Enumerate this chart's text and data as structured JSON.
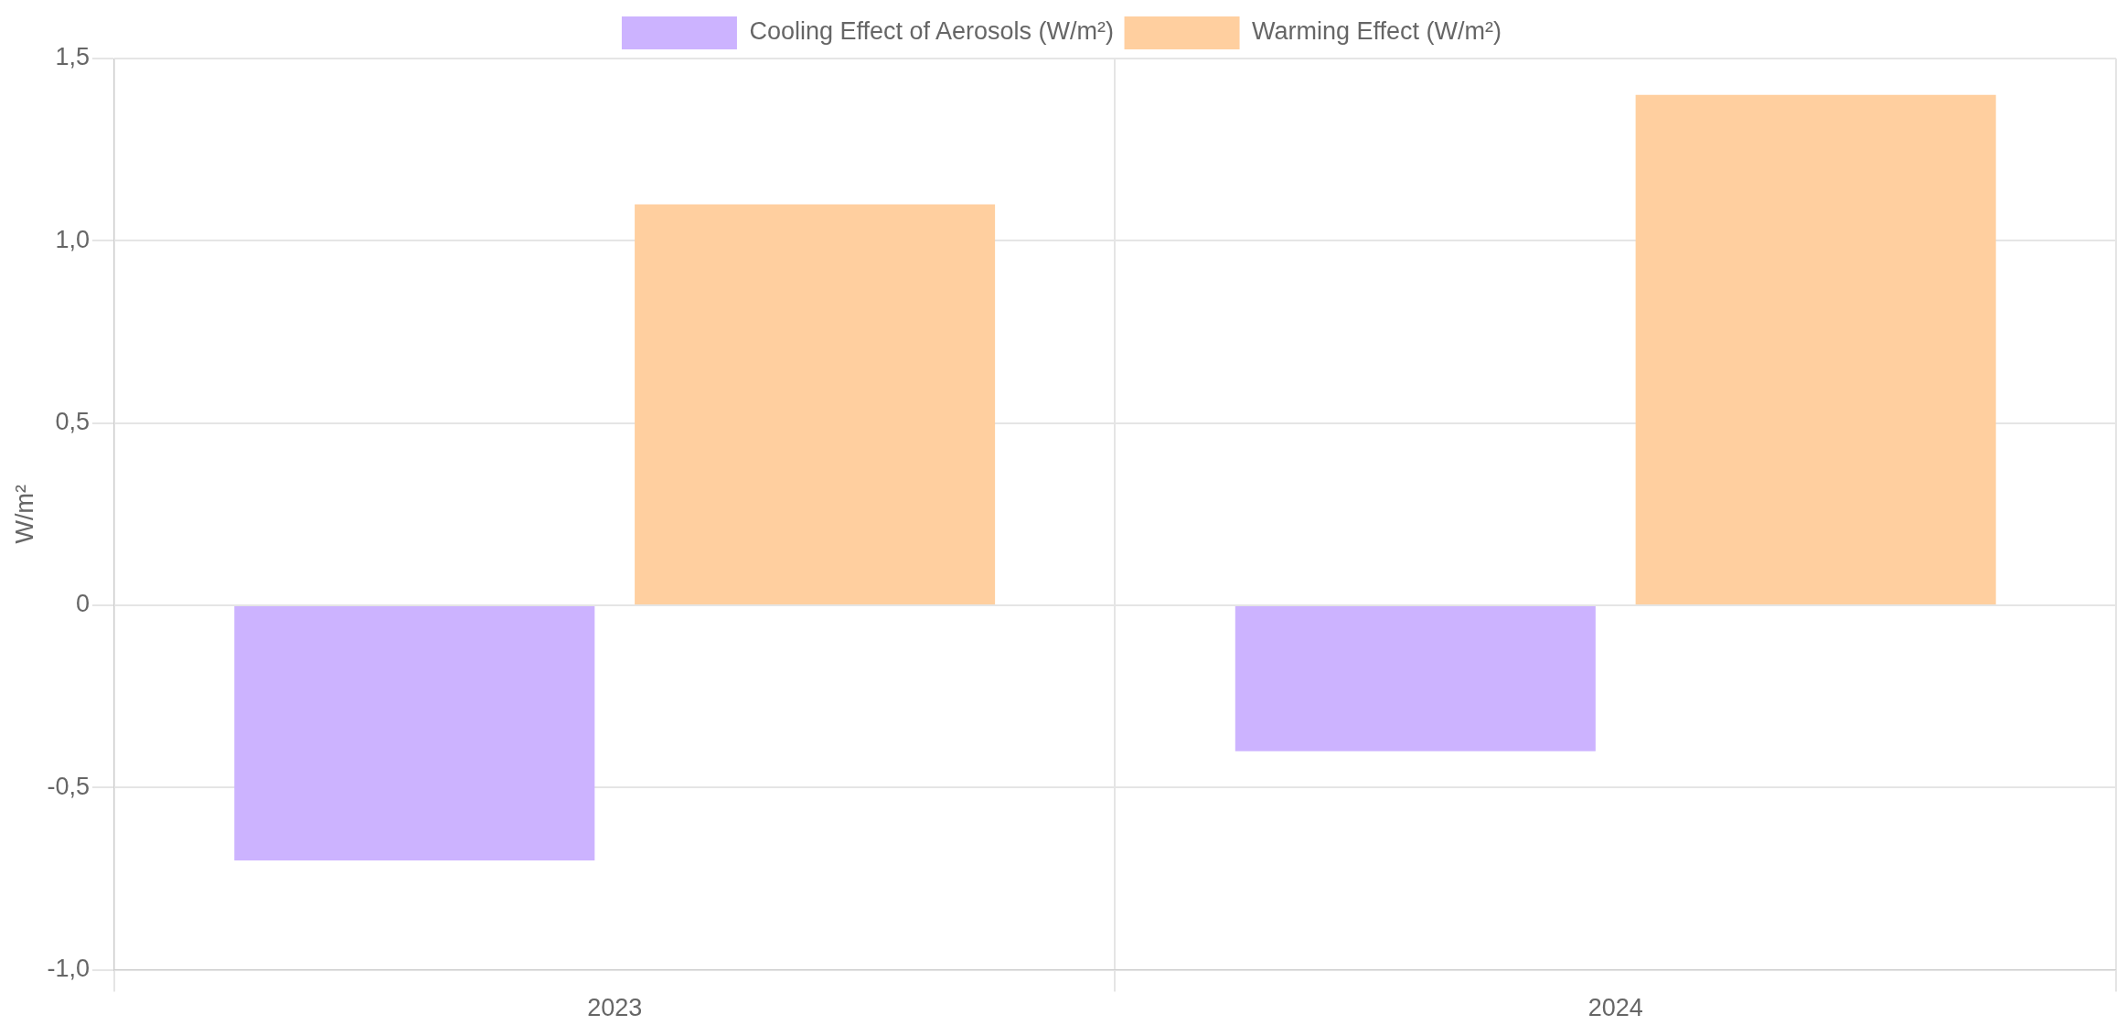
{
  "chart_data": {
    "type": "bar",
    "ylabel": "W/m²",
    "categories": [
      "2023",
      "2024"
    ],
    "series": [
      {
        "name": "Cooling Effect of Aerosols (W/m²)",
        "color": "#ccb3ff",
        "values": [
          -0.7,
          -0.4
        ]
      },
      {
        "name": "Warming Effect (W/m²)",
        "color": "#ffcf9f",
        "values": [
          1.1,
          1.4
        ]
      }
    ],
    "ylim": [
      -1,
      1.5
    ],
    "yticks": [
      {
        "value": -1,
        "label": "-1,0"
      },
      {
        "value": -0.5,
        "label": "-0,5"
      },
      0,
      {
        "value": 0.5,
        "label": "0,5"
      },
      {
        "value": 1,
        "label": "1,0"
      },
      {
        "value": 1.5,
        "label": "1,5"
      }
    ],
    "grid": true,
    "legend": "top"
  }
}
